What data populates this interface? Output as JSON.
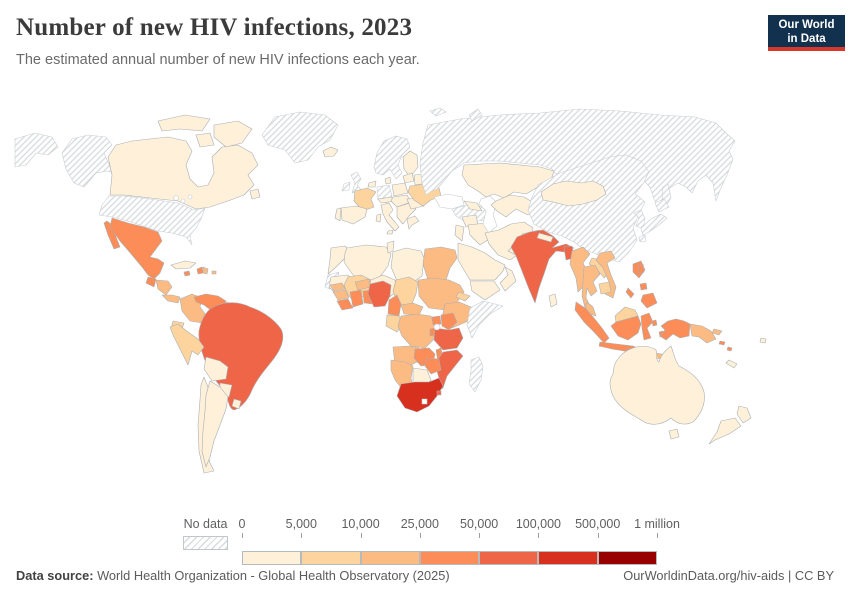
{
  "header": {
    "title": "Number of new HIV infections, 2023",
    "subtitle": "The estimated annual number of new HIV infections each year.",
    "logo": {
      "line1": "Our World",
      "line2": "in Data",
      "bg_color": "#12314e",
      "accent_color": "#d7382c"
    }
  },
  "legend": {
    "no_data_label": "No data",
    "tick_labels": [
      "0",
      "5,000",
      "10,000",
      "25,000",
      "50,000",
      "100,000",
      "500,000",
      "1 million"
    ],
    "colors": [
      "#fef0d9",
      "#fdd49e",
      "#fdbb84",
      "#fc8d59",
      "#ef6548",
      "#d7301f",
      "#990000"
    ]
  },
  "footer": {
    "source_label": "Data source:",
    "source_text": " World Health Organization - Global Health Observatory (2025)",
    "link_text": "OurWorldinData.org/hiv-aids | CC BY"
  },
  "chart_data": {
    "type": "choropleth_map",
    "title": "Number of new HIV infections, 2023",
    "subtitle": "The estimated annual number of new HIV infections each year.",
    "year": 2023,
    "unit": "new HIV infections per year",
    "legend_position": "bottom",
    "bins": [
      {
        "range": "0–5,000",
        "color": "#fef0d9"
      },
      {
        "range": "5,000–10,000",
        "color": "#fdd49e"
      },
      {
        "range": "10,000–25,000",
        "color": "#fdbb84"
      },
      {
        "range": "25,000–50,000",
        "color": "#fc8d59"
      },
      {
        "range": "50,000–100,000",
        "color": "#ef6548"
      },
      {
        "range": "100,000–500,000",
        "color": "#d7301f"
      },
      {
        "range": "500,000–1 million",
        "color": "#990000"
      }
    ],
    "no_data_style": "gray diagonal hatching",
    "country_bins": {
      "chukotka": "no_data",
      "alaska": "no_data",
      "usa": "no_data",
      "canada": 0,
      "canada_arctic1": 0,
      "canada_arctic2": 0,
      "canada_arctic3": 0,
      "newfoundland": 0,
      "greenland": "no_data",
      "iceland": 0,
      "mexico": 3,
      "mexico_baja": 3,
      "guatemala": 3,
      "honduras_nicaragua": 2,
      "costa_rica_panama": 2,
      "cuba": 0,
      "jamaica": 3,
      "haiti": 3,
      "dominican_republic": 2,
      "puerto_rico": 2,
      "colombia": 2,
      "venezuela": 3,
      "guyanas": 0,
      "ecuador": 1,
      "peru": 1,
      "brazil": 4,
      "bolivia": 0,
      "paraguay": 0,
      "uruguay": 0,
      "argentina": 0,
      "chile": 0,
      "scandinavia": "no_data",
      "finland": 0,
      "uk": "no_data",
      "ireland": "no_data",
      "denmark": 0,
      "benelux": 0,
      "germany": "no_data",
      "france": 1,
      "spain": 0,
      "portugal": 0,
      "italy": 0,
      "sicily": 0,
      "sardinia": 0,
      "alpine": 0,
      "poland": 0,
      "czech_hungary": 0,
      "balkans": 0,
      "greece": 0,
      "romania": 0,
      "baltics": 0,
      "belarus": 0,
      "ukraine": 1,
      "russia": "no_data",
      "svalbard": "no_data",
      "novaya_zemlya": "no_data",
      "sakhalin": "no_data",
      "turkey": "no_data",
      "caucasus": 0,
      "syria": 0,
      "israel_jordan": 0,
      "iraq": 0,
      "saudi_arabia": 0,
      "yemen": 0,
      "oman": 0,
      "kazakhstan": 0,
      "central_asia": 0,
      "kyrgyz_tajik": 0,
      "iran": 0,
      "afghanistan": 0,
      "pakistan": 0,
      "india": 4,
      "nepal": 0,
      "bangladesh": 4,
      "sri_lanka": 0,
      "myanmar": 2,
      "thailand": 2,
      "laos": 1,
      "vietnam": 2,
      "cambodia": 1,
      "malaysia": 2,
      "borneo_malaysia": 1,
      "sumatra": 3,
      "java": 3,
      "kalimantan": 3,
      "sulawesi": 3,
      "lesser_sunda_1": 3,
      "lesser_sunda_2": 3,
      "timor": 2,
      "maluku_1": 3,
      "maluku_2": 3,
      "west_papua": 3,
      "png": 2,
      "new_britain": 2,
      "solomon_1": 3,
      "solomon_2": 3,
      "philippines_luzon": 3,
      "philippines_visayas": 3,
      "philippines_mindanao": 3,
      "palawan": 3,
      "taiwan": 3,
      "china": "no_data",
      "mongolia": 0,
      "japan_hokkaido": "no_data",
      "japan_honshu": "no_data",
      "japan_kyushu": "no_data",
      "korea": "no_data",
      "morocco": 0,
      "western_sahara": "no_data",
      "algeria": 0,
      "tunisia": 0,
      "libya": 0,
      "egypt": 2,
      "mauritania": 0,
      "mali": 1,
      "niger": 0,
      "chad": 1,
      "sudan": 2,
      "eritrea": 1,
      "ethiopia": 2,
      "somalia": "no_data",
      "senegal": 2,
      "guinea": 2,
      "sierra_leone_liberia": 3,
      "cote_divoire": 3,
      "ghana": 3,
      "togo_benin": 2,
      "burkina_faso": 2,
      "nigeria": 4,
      "cameroon": 3,
      "central_african_republic": 2,
      "gabon_congo": 1,
      "drc": 2,
      "uganda": 3,
      "kenya": 3,
      "tanzania": 4,
      "rwanda_burundi": 3,
      "angola": 2,
      "zambia": 3,
      "malawi": 3,
      "mozambique": 4,
      "zimbabwe": 3,
      "botswana": 0,
      "namibia": 2,
      "south_africa": 5,
      "eswatini": 4,
      "madagascar": "no_data",
      "australia": 0,
      "tasmania": 0,
      "nz_north": 0,
      "nz_south": 0,
      "new_caledonia": 0,
      "fiji": 0
    }
  }
}
